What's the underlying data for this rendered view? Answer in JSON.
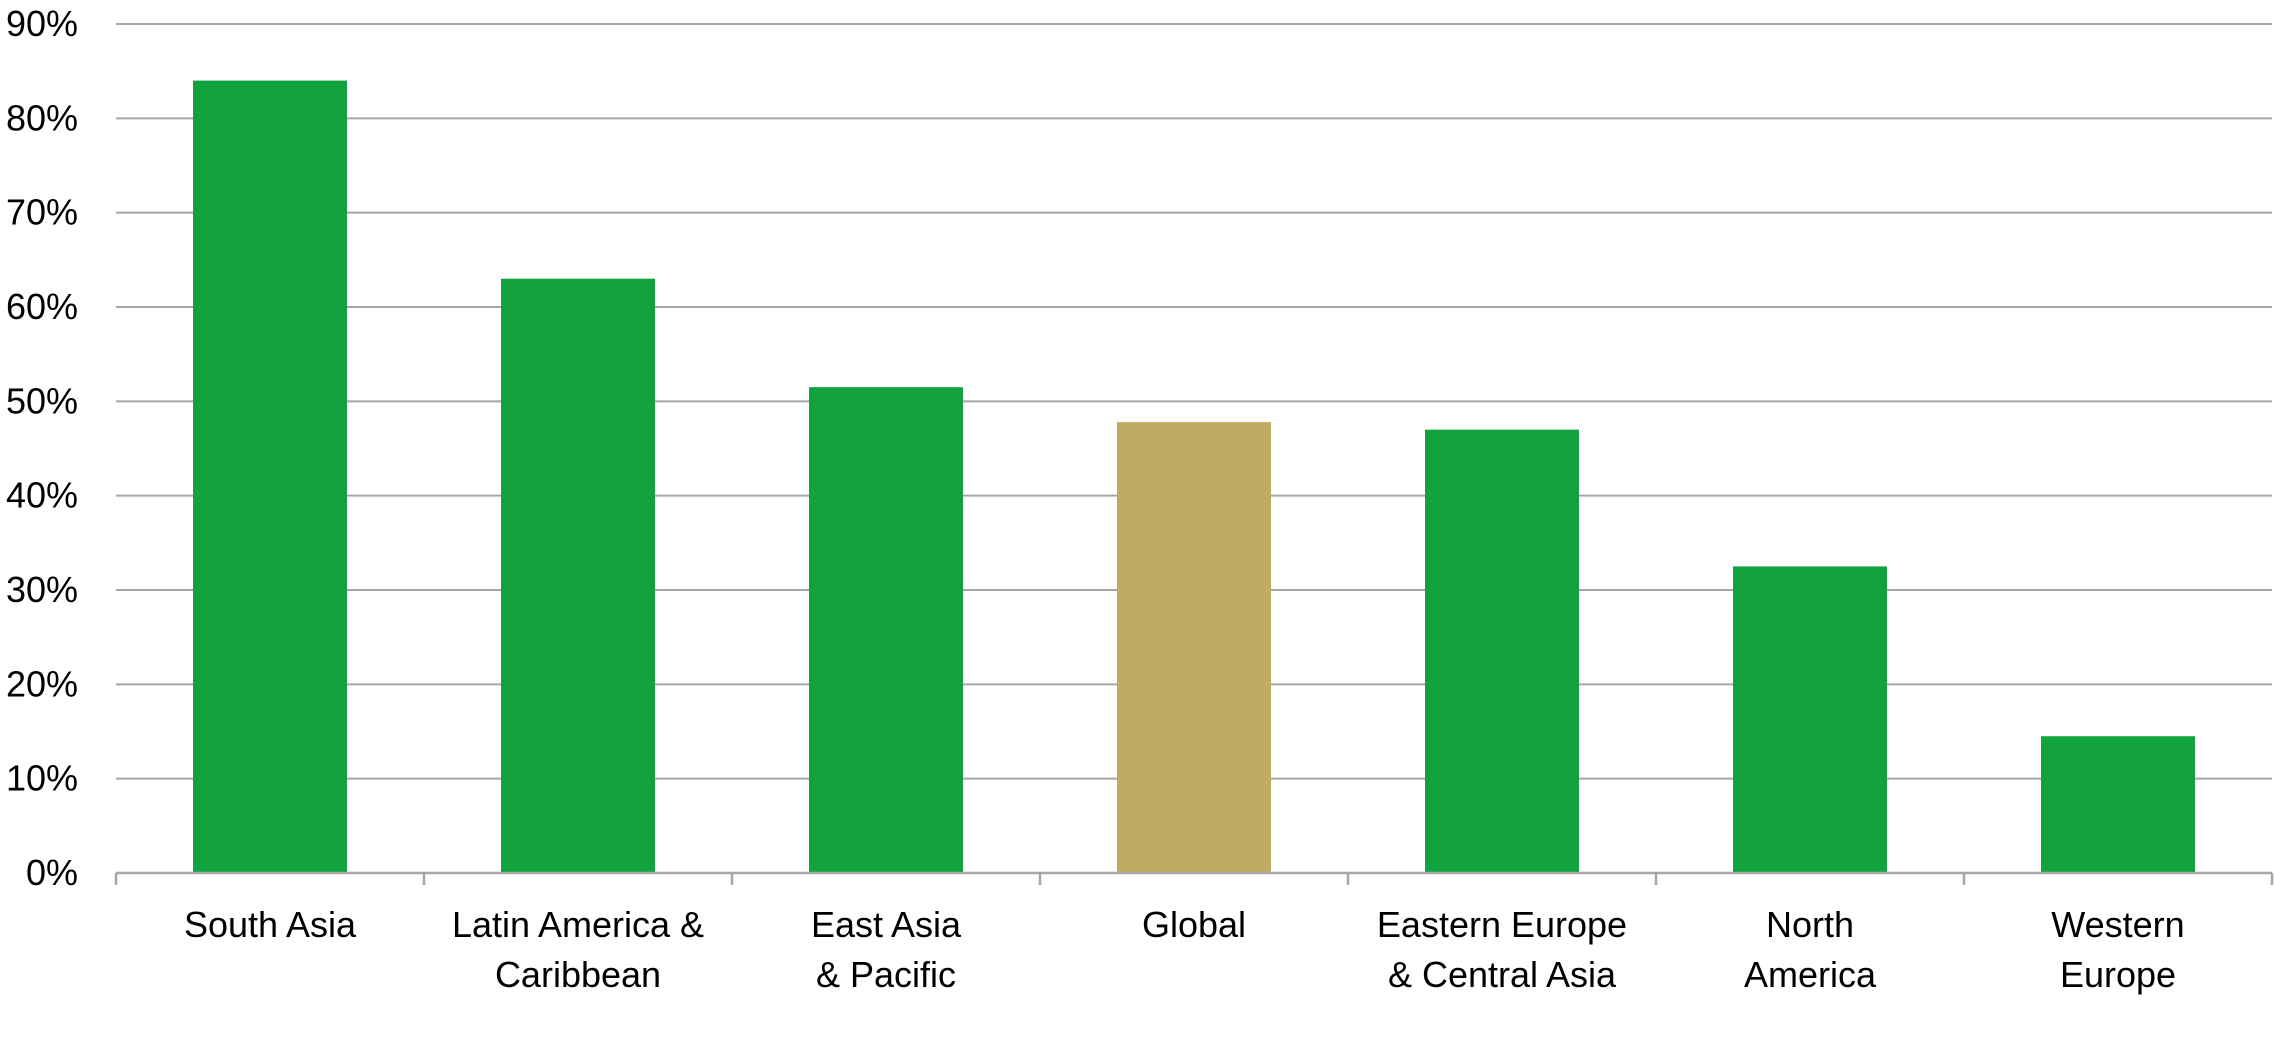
{
  "chart_data": {
    "type": "bar",
    "title": "",
    "xlabel": "",
    "ylabel": "",
    "categories": [
      [
        "South Asia"
      ],
      [
        "Latin America &",
        "Caribbean"
      ],
      [
        "East Asia",
        "& Pacific"
      ],
      [
        "Global"
      ],
      [
        "Eastern Europe",
        "& Central Asia"
      ],
      [
        "North",
        "America"
      ],
      [
        "Western",
        "Europe"
      ]
    ],
    "values": [
      84,
      63,
      51.5,
      47.8,
      47,
      32.5,
      14.5
    ],
    "value_unit": "%",
    "ylim": [
      0,
      90
    ],
    "yticks": [
      0,
      10,
      20,
      30,
      40,
      50,
      60,
      70,
      80,
      90
    ],
    "ytick_labels": [
      "0%",
      "10%",
      "20%",
      "30%",
      "40%",
      "50%",
      "60%",
      "70%",
      "80%",
      "90%"
    ],
    "grid": true,
    "legend": "none",
    "bar_colors": [
      "#12a33e",
      "#12a33e",
      "#12a33e",
      "#c1aa62",
      "#12a33e",
      "#12a33e",
      "#12a33e"
    ],
    "grid_color": "#a6a6a6"
  }
}
